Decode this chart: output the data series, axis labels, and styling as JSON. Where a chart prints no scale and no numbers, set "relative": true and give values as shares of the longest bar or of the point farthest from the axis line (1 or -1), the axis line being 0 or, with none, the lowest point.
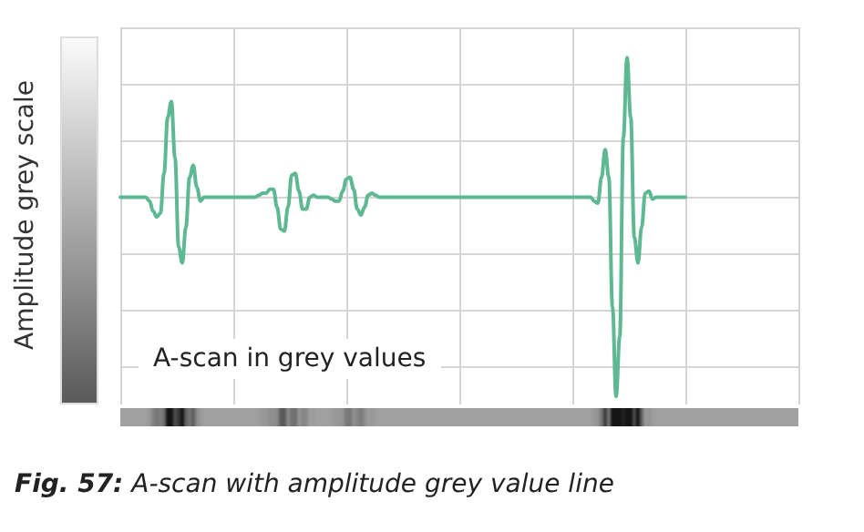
{
  "chart_data": {
    "type": "line",
    "relative": true,
    "ylabel": "Amplitude grey scale",
    "grid": true,
    "line_style": "solid",
    "annotations": [
      "A-scan in grey values",
      "Fig. 57: A-scan with amplitude grey value line"
    ],
    "categories": [
      null,
      null,
      null,
      null,
      null,
      null,
      null,
      null,
      null,
      null,
      null,
      null,
      null,
      null,
      null,
      null,
      null,
      null,
      null,
      null,
      null,
      null,
      null,
      null,
      null,
      null,
      null,
      null,
      null,
      null,
      null,
      null,
      null,
      null,
      null,
      null,
      null,
      null,
      null,
      null,
      null,
      null,
      null,
      null,
      null,
      null,
      null,
      null,
      null,
      null,
      null,
      null,
      null,
      null,
      null,
      null,
      null,
      null,
      null,
      null,
      null,
      null,
      null,
      null,
      null,
      null,
      null,
      null,
      null,
      null,
      null,
      null,
      null,
      null,
      null,
      null,
      null,
      null,
      null,
      null,
      null,
      null,
      null,
      null,
      null,
      null,
      null,
      null,
      null,
      null,
      null,
      null,
      null,
      null,
      null,
      null,
      null,
      null,
      null,
      null,
      null,
      null,
      null,
      null,
      null,
      null,
      null,
      null,
      null,
      null,
      null,
      null,
      null,
      null,
      null,
      null,
      null,
      null,
      null,
      null,
      null,
      null,
      null,
      null,
      null,
      null,
      null,
      null,
      null,
      null,
      null,
      null,
      null,
      null,
      null,
      null,
      null,
      null,
      null,
      null,
      null,
      null,
      null,
      null,
      null,
      null,
      null,
      null,
      null,
      null,
      null,
      null,
      null,
      null,
      null,
      null,
      null,
      null,
      null,
      null,
      null,
      null,
      null,
      null,
      null,
      null,
      null,
      null,
      null,
      null,
      null,
      null,
      null,
      null,
      null,
      null,
      null,
      null,
      null,
      null,
      null,
      null,
      null,
      null,
      null,
      null,
      null
    ],
    "series": [
      {
        "color": "#5fb894",
        "values": [
          0,
          0,
          0,
          0,
          0,
          0,
          0,
          0,
          -0.02,
          -0.07,
          -0.1,
          -0.08,
          0.12,
          0.4,
          0.48,
          0.2,
          -0.25,
          -0.33,
          -0.15,
          0.1,
          0.16,
          0.05,
          -0.02,
          0,
          0,
          0,
          0,
          0,
          0,
          0,
          0,
          0,
          0,
          0,
          0,
          0,
          0,
          0,
          0.01,
          0.02,
          0.02,
          0.04,
          0.04,
          -0.05,
          -0.16,
          -0.17,
          -0.05,
          0.11,
          0.12,
          0.03,
          -0.06,
          -0.06,
          0,
          0.01,
          0,
          0,
          0,
          0,
          -0.01,
          -0.02,
          -0.02,
          0.03,
          0.09,
          0.1,
          0.04,
          -0.06,
          -0.09,
          -0.05,
          0.01,
          0.02,
          0.01,
          0,
          0,
          0,
          0,
          0,
          0,
          0,
          0,
          0,
          0,
          0,
          0,
          0,
          0,
          0,
          0,
          0,
          0,
          0,
          0,
          0,
          0,
          0,
          0,
          0,
          0,
          0,
          0,
          0,
          0,
          0,
          0,
          0,
          0,
          0,
          0,
          0,
          0,
          0,
          0,
          0,
          0,
          0,
          0,
          0,
          0,
          0,
          0,
          0,
          0,
          0,
          0,
          0,
          0,
          0,
          0,
          0,
          0,
          0,
          -0.02,
          -0.03,
          0.1,
          0.24,
          0.1,
          -0.55,
          -1,
          -0.7,
          0.3,
          0.7,
          0.4,
          -0.2,
          -0.33,
          -0.15,
          0.02,
          0.03,
          -0.01,
          0,
          0,
          0,
          0,
          0,
          0,
          0,
          0,
          0,
          null,
          null,
          null,
          null,
          null,
          null,
          null,
          null,
          null,
          null,
          null,
          null,
          null,
          null,
          null,
          null,
          null,
          null,
          null,
          null,
          null,
          null,
          null,
          null,
          null,
          null,
          null,
          null,
          null,
          null,
          null
        ]
      }
    ]
  }
}
